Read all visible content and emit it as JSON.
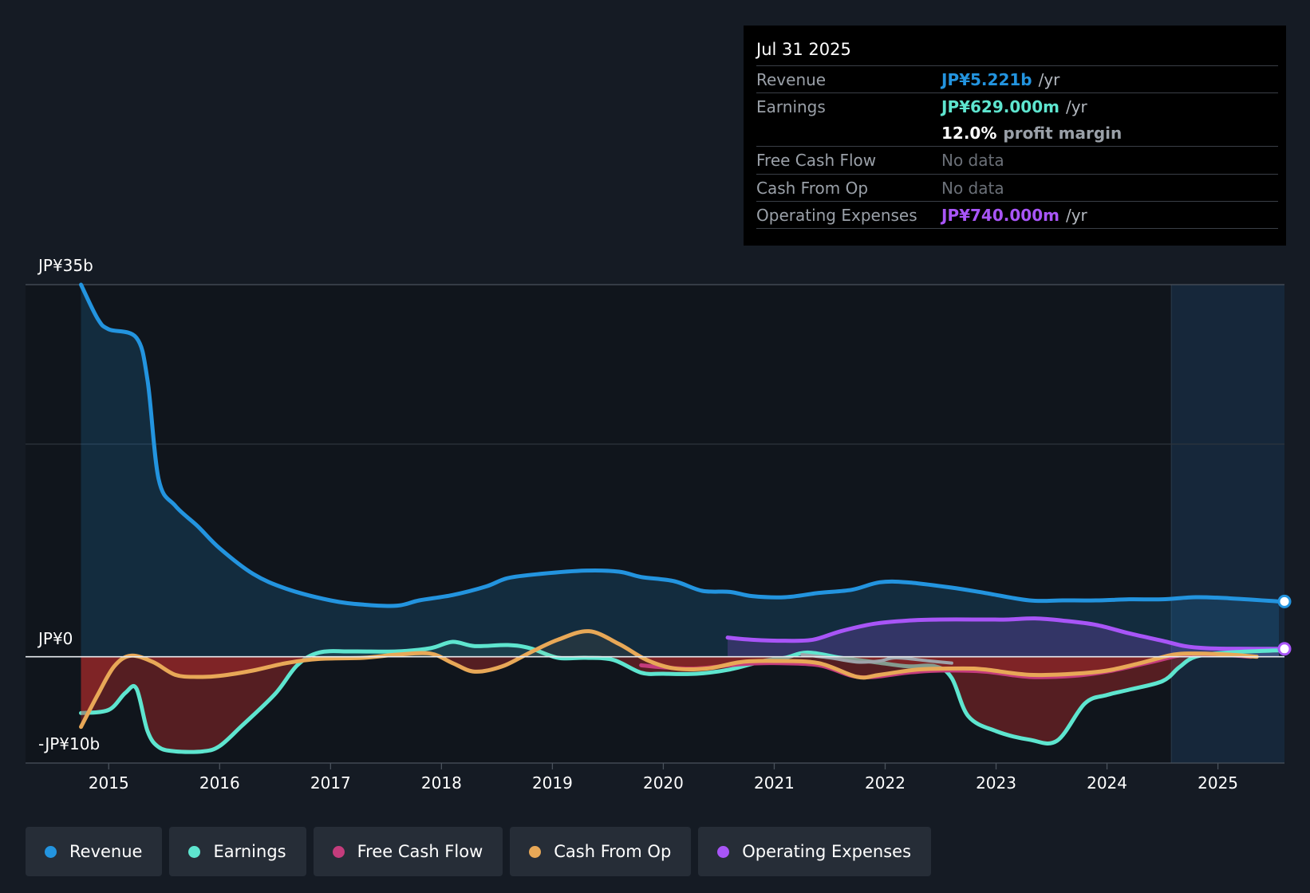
{
  "tooltip": {
    "date": "Jul 31 2025",
    "rows": [
      {
        "label": "Revenue",
        "value": "JP¥5.221b",
        "unit": "/yr",
        "color": "#2394df"
      },
      {
        "label": "Earnings",
        "value": "JP¥629.000m",
        "unit": "/yr",
        "color": "#5ee5cf"
      },
      {
        "label": "",
        "value": "12.0%",
        "unit": "profit margin",
        "color": "#ffffff"
      },
      {
        "label": "Free Cash Flow",
        "value": "No data",
        "unit": "",
        "color": "#6b7078"
      },
      {
        "label": "Cash From Op",
        "value": "No data",
        "unit": "",
        "color": "#6b7078"
      },
      {
        "label": "Operating Expenses",
        "value": "JP¥740.000m",
        "unit": "/yr",
        "color": "#a855f7"
      }
    ]
  },
  "legend": [
    {
      "label": "Revenue",
      "color": "#2394df"
    },
    {
      "label": "Earnings",
      "color": "#5ee5cf"
    },
    {
      "label": "Free Cash Flow",
      "color": "#c43c7c"
    },
    {
      "label": "Cash From Op",
      "color": "#e8a857"
    },
    {
      "label": "Operating Expenses",
      "color": "#a855f7"
    }
  ],
  "chart_data": {
    "type": "line",
    "y_top_label": "JP¥35b",
    "y_zero_label": "JP¥0",
    "y_bottom_label": "-JP¥10b",
    "ylim": [
      -10,
      35
    ],
    "xlim": [
      2014.25,
      2025.6
    ],
    "x_ticks": [
      "2015",
      "2016",
      "2017",
      "2018",
      "2019",
      "2020",
      "2021",
      "2022",
      "2023",
      "2024",
      "2025"
    ],
    "forecast_start": 2024.58,
    "series": [
      {
        "name": "Revenue",
        "color": "#2394df",
        "fill": true,
        "points": [
          [
            2014.75,
            35
          ],
          [
            2014.9,
            31.8
          ],
          [
            2015.0,
            30.8
          ],
          [
            2015.25,
            30.0
          ],
          [
            2015.35,
            26
          ],
          [
            2015.45,
            16.7
          ],
          [
            2015.6,
            14.2
          ],
          [
            2015.8,
            12.3
          ],
          [
            2016.0,
            10.2
          ],
          [
            2016.3,
            7.8
          ],
          [
            2016.6,
            6.4
          ],
          [
            2017.0,
            5.3
          ],
          [
            2017.3,
            4.9
          ],
          [
            2017.6,
            4.8
          ],
          [
            2017.8,
            5.3
          ],
          [
            2018.1,
            5.8
          ],
          [
            2018.4,
            6.6
          ],
          [
            2018.6,
            7.4
          ],
          [
            2018.9,
            7.8
          ],
          [
            2019.3,
            8.1
          ],
          [
            2019.6,
            8.0
          ],
          [
            2019.8,
            7.5
          ],
          [
            2020.1,
            7.1
          ],
          [
            2020.35,
            6.2
          ],
          [
            2020.6,
            6.1
          ],
          [
            2020.8,
            5.7
          ],
          [
            2021.1,
            5.6
          ],
          [
            2021.4,
            6.0
          ],
          [
            2021.7,
            6.3
          ],
          [
            2021.95,
            7.0
          ],
          [
            2022.2,
            7.0
          ],
          [
            2022.6,
            6.5
          ],
          [
            2022.9,
            6.0
          ],
          [
            2023.3,
            5.3
          ],
          [
            2023.6,
            5.3
          ],
          [
            2023.9,
            5.3
          ],
          [
            2024.2,
            5.4
          ],
          [
            2024.5,
            5.4
          ],
          [
            2024.8,
            5.6
          ],
          [
            2025.1,
            5.5
          ],
          [
            2025.55,
            5.2
          ]
        ]
      },
      {
        "name": "Operating Expenses",
        "color": "#a855f7",
        "fill": true,
        "points": [
          [
            2020.58,
            1.8
          ],
          [
            2020.8,
            1.6
          ],
          [
            2021.1,
            1.5
          ],
          [
            2021.35,
            1.6
          ],
          [
            2021.6,
            2.4
          ],
          [
            2021.9,
            3.1
          ],
          [
            2022.2,
            3.4
          ],
          [
            2022.5,
            3.5
          ],
          [
            2022.9,
            3.5
          ],
          [
            2023.1,
            3.5
          ],
          [
            2023.35,
            3.6
          ],
          [
            2023.6,
            3.4
          ],
          [
            2023.9,
            3.0
          ],
          [
            2024.2,
            2.2
          ],
          [
            2024.5,
            1.5
          ],
          [
            2024.7,
            1.0
          ],
          [
            2024.9,
            0.8
          ],
          [
            2025.2,
            0.75
          ],
          [
            2025.55,
            0.74
          ]
        ]
      },
      {
        "name": "Earnings",
        "color": "#5ee5cf",
        "fill": true,
        "points": [
          [
            2014.75,
            -5.3
          ],
          [
            2015.0,
            -5.0
          ],
          [
            2015.15,
            -3.4
          ],
          [
            2015.25,
            -3.0
          ],
          [
            2015.35,
            -7.0
          ],
          [
            2015.45,
            -8.5
          ],
          [
            2015.6,
            -8.9
          ],
          [
            2015.85,
            -8.9
          ],
          [
            2016.0,
            -8.4
          ],
          [
            2016.2,
            -6.5
          ],
          [
            2016.5,
            -3.5
          ],
          [
            2016.7,
            -0.8
          ],
          [
            2016.9,
            0.4
          ],
          [
            2017.2,
            0.5
          ],
          [
            2017.6,
            0.5
          ],
          [
            2017.9,
            0.8
          ],
          [
            2018.1,
            1.4
          ],
          [
            2018.3,
            1.0
          ],
          [
            2018.6,
            1.1
          ],
          [
            2018.8,
            0.8
          ],
          [
            2019.05,
            -0.1
          ],
          [
            2019.3,
            -0.1
          ],
          [
            2019.55,
            -0.3
          ],
          [
            2019.8,
            -1.5
          ],
          [
            2020.0,
            -1.6
          ],
          [
            2020.3,
            -1.6
          ],
          [
            2020.6,
            -1.2
          ],
          [
            2020.9,
            -0.4
          ],
          [
            2021.1,
            -0.1
          ],
          [
            2021.3,
            0.4
          ],
          [
            2021.6,
            -0.1
          ],
          [
            2021.9,
            -0.5
          ],
          [
            2022.2,
            -0.9
          ],
          [
            2022.45,
            -0.9
          ],
          [
            2022.6,
            -2.0
          ],
          [
            2022.75,
            -5.6
          ],
          [
            2023.0,
            -7.0
          ],
          [
            2023.3,
            -7.8
          ],
          [
            2023.55,
            -7.9
          ],
          [
            2023.8,
            -4.4
          ],
          [
            2024.0,
            -3.6
          ],
          [
            2024.2,
            -3.1
          ],
          [
            2024.5,
            -2.3
          ],
          [
            2024.65,
            -1.0
          ],
          [
            2024.8,
            0.0
          ],
          [
            2025.1,
            0.4
          ],
          [
            2025.55,
            0.6
          ]
        ]
      },
      {
        "name": "Free Cash Flow",
        "color": "#c43c7c",
        "fill": false,
        "points": [
          [
            2019.8,
            -0.8
          ],
          [
            2020.0,
            -1.0
          ],
          [
            2020.3,
            -1.1
          ],
          [
            2020.7,
            -0.7
          ],
          [
            2021.0,
            -0.6
          ],
          [
            2021.4,
            -0.8
          ],
          [
            2021.7,
            -1.8
          ],
          [
            2021.9,
            -1.9
          ],
          [
            2022.2,
            -1.5
          ],
          [
            2022.5,
            -1.3
          ],
          [
            2022.9,
            -1.4
          ],
          [
            2023.3,
            -1.9
          ],
          [
            2023.7,
            -1.8
          ],
          [
            2024.0,
            -1.4
          ],
          [
            2024.4,
            -0.5
          ],
          [
            2024.7,
            0.2
          ],
          [
            2025.0,
            0.2
          ],
          [
            2025.3,
            0.0
          ]
        ]
      },
      {
        "name": "Cash From Op",
        "color": "#e8a857",
        "fill": true,
        "points": [
          [
            2014.75,
            -6.6
          ],
          [
            2014.9,
            -3.6
          ],
          [
            2015.05,
            -0.9
          ],
          [
            2015.2,
            0.1
          ],
          [
            2015.4,
            -0.5
          ],
          [
            2015.6,
            -1.7
          ],
          [
            2015.8,
            -1.9
          ],
          [
            2016.0,
            -1.8
          ],
          [
            2016.3,
            -1.3
          ],
          [
            2016.6,
            -0.6
          ],
          [
            2016.9,
            -0.2
          ],
          [
            2017.3,
            -0.1
          ],
          [
            2017.6,
            0.2
          ],
          [
            2017.9,
            0.3
          ],
          [
            2018.1,
            -0.6
          ],
          [
            2018.3,
            -1.4
          ],
          [
            2018.55,
            -0.9
          ],
          [
            2018.8,
            0.4
          ],
          [
            2019.05,
            1.6
          ],
          [
            2019.33,
            2.4
          ],
          [
            2019.6,
            1.2
          ],
          [
            2019.85,
            -0.3
          ],
          [
            2020.1,
            -1.1
          ],
          [
            2020.4,
            -1.1
          ],
          [
            2020.7,
            -0.5
          ],
          [
            2021.0,
            -0.4
          ],
          [
            2021.4,
            -0.6
          ],
          [
            2021.75,
            -1.9
          ],
          [
            2021.95,
            -1.7
          ],
          [
            2022.3,
            -1.2
          ],
          [
            2022.7,
            -1.1
          ],
          [
            2022.9,
            -1.2
          ],
          [
            2023.3,
            -1.7
          ],
          [
            2023.7,
            -1.6
          ],
          [
            2024.0,
            -1.3
          ],
          [
            2024.3,
            -0.6
          ],
          [
            2024.6,
            0.2
          ],
          [
            2024.8,
            0.3
          ],
          [
            2025.1,
            0.2
          ],
          [
            2025.35,
            0.0
          ]
        ]
      },
      {
        "name": "Gray",
        "color": "#9ea3aa",
        "fill": false,
        "points": [
          [
            2021.25,
            0.2
          ],
          [
            2021.5,
            -0.1
          ],
          [
            2021.75,
            -0.5
          ],
          [
            2021.95,
            -0.4
          ],
          [
            2022.1,
            -0.1
          ],
          [
            2022.4,
            -0.4
          ],
          [
            2022.6,
            -0.6
          ]
        ]
      }
    ]
  }
}
